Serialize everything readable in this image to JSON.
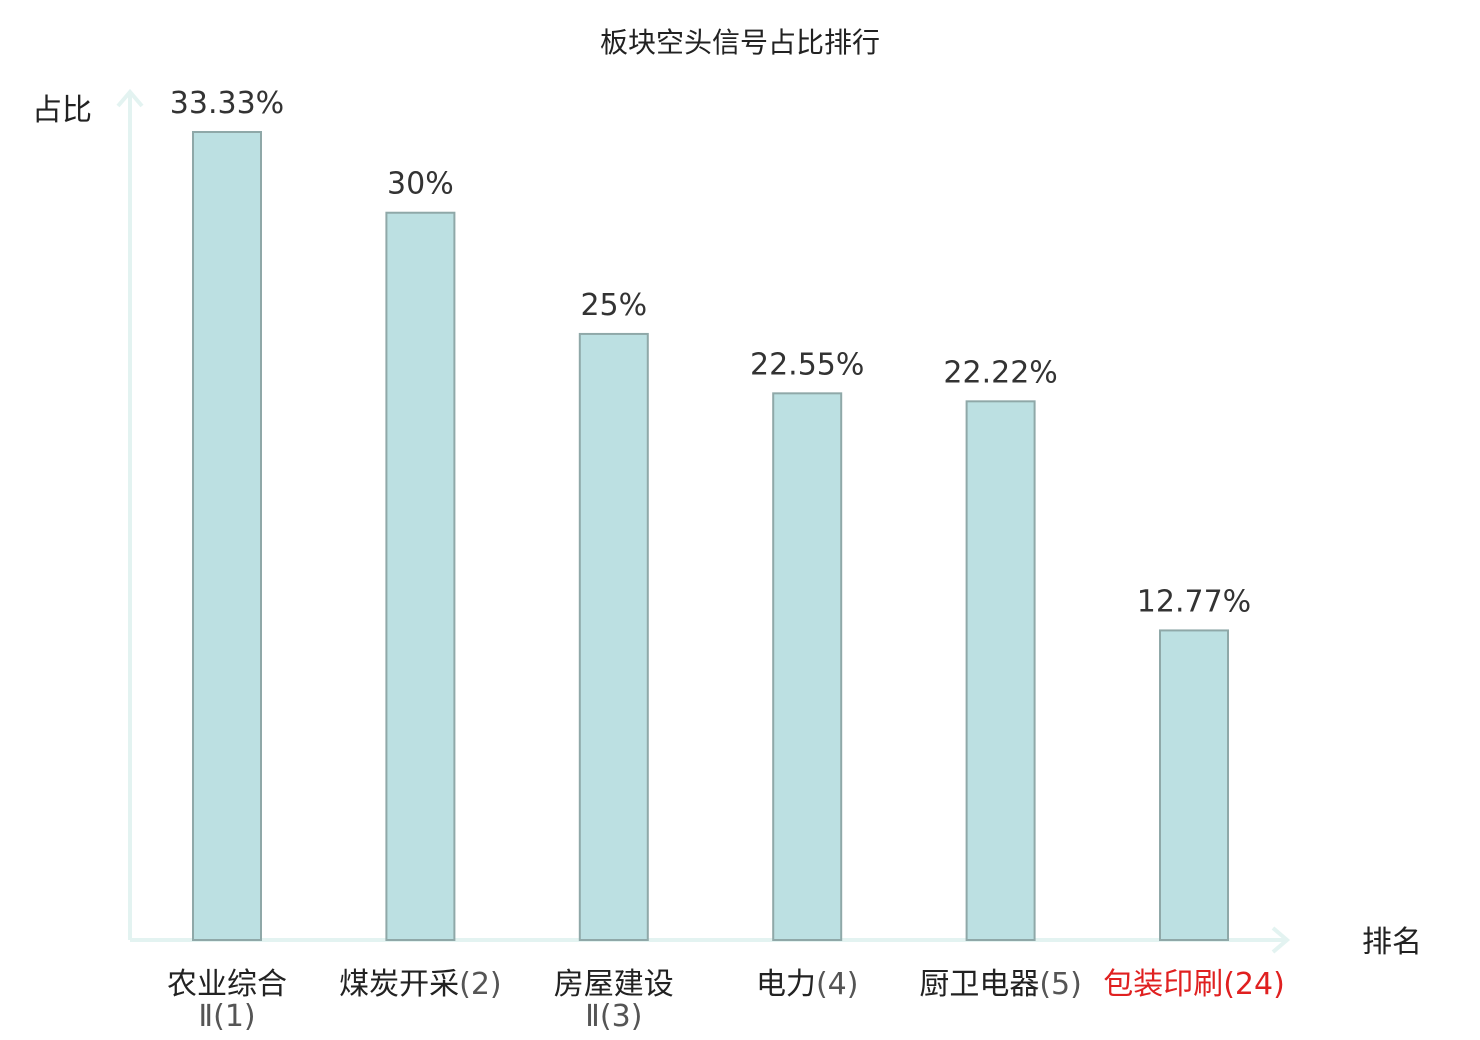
{
  "chart_data": {
    "type": "bar",
    "title": "板块空头信号占比排行",
    "ylabel": "占比",
    "xlabel": "排名",
    "ylim": [
      0,
      35
    ],
    "grid": false,
    "categories": [
      {
        "name": "农业综合",
        "rank": "Ⅱ(1)",
        "highlight": false
      },
      {
        "name": "煤炭开采",
        "rank": "(2)",
        "highlight": false
      },
      {
        "name": "房屋建设",
        "rank": "Ⅱ(3)",
        "highlight": false
      },
      {
        "name": "电力",
        "rank": "(4)",
        "highlight": false
      },
      {
        "name": "厨卫电器",
        "rank": "(5)",
        "highlight": false
      },
      {
        "name": "包装印刷",
        "rank": "(24)",
        "highlight": true
      }
    ],
    "values": [
      33.33,
      30,
      25,
      22.55,
      22.22,
      12.77
    ],
    "value_labels": [
      "33.33%",
      "30%",
      "25%",
      "22.55%",
      "22.22%",
      "12.77%"
    ],
    "colors": {
      "bar_fill": "#bce0e2",
      "bar_stroke": "#8fa8a8",
      "axis": "#e3f3f1",
      "highlight": "#e02020"
    }
  }
}
